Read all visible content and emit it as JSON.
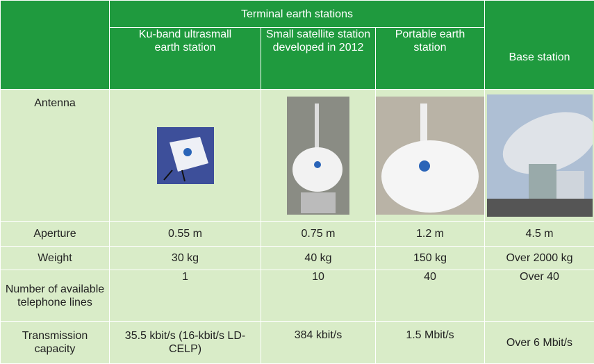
{
  "header": {
    "group": "Terminal earth stations",
    "columns": [
      "Ku-band ultrasmall earth station",
      "Small satellite station developed in 2012",
      "Portable earth station"
    ],
    "base": "Base station"
  },
  "antenna_label": "Antenna",
  "rows": [
    {
      "label": "Aperture",
      "cells": [
        "0.55 m",
        "0.75 m",
        "1.2 m",
        "4.5 m"
      ]
    },
    {
      "label": "Weight",
      "cells": [
        "30 kg",
        "40 kg",
        "150 kg",
        "Over 2000 kg"
      ]
    },
    {
      "label": "Number of available telephone lines",
      "cells": [
        "1",
        "10",
        "40",
        "Over 40"
      ]
    },
    {
      "label": "Transmission capacity",
      "cells": [
        "35.5 kbit/s (16-kbit/s LD-CELP)",
        "384 kbit/s",
        "1.5 Mbit/s",
        "Over 6 Mbit/s"
      ]
    }
  ]
}
